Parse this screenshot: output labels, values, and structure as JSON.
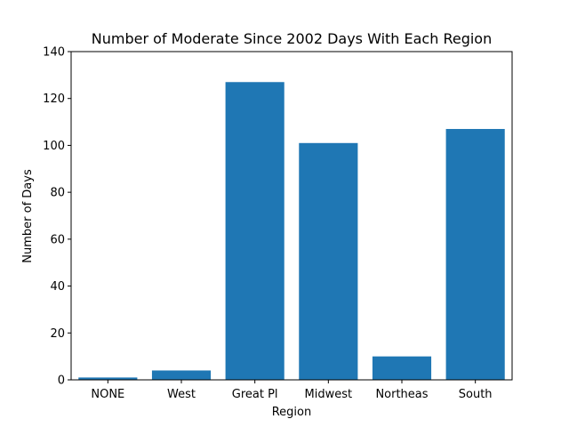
{
  "chart_data": {
    "type": "bar",
    "title": "Number of Moderate Since 2002 Days With Each Region",
    "xlabel": "Region",
    "ylabel": "Number of Days",
    "categories": [
      "NONE",
      "West",
      "Great Pl",
      "Midwest",
      "Northeas",
      "South"
    ],
    "values": [
      1,
      4,
      127,
      101,
      10,
      107
    ],
    "ylim": [
      0,
      140
    ],
    "yticks": [
      0,
      20,
      40,
      60,
      80,
      100,
      120,
      140
    ],
    "bar_color": "#1f77b4",
    "grid": false,
    "legend": "none"
  }
}
